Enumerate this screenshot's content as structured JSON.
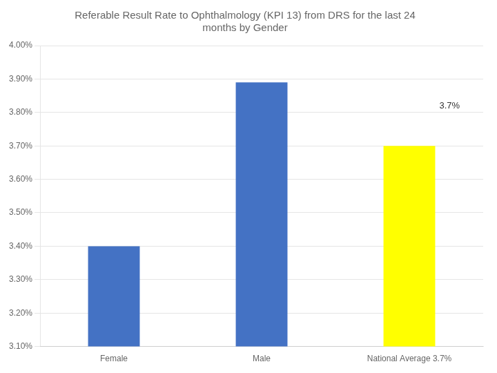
{
  "chart_data": {
    "type": "bar",
    "title": "Referable Result Rate to Ophthalmology (KPI 13) from DRS for the last 24\nmonths by Gender",
    "categories": [
      "Female",
      "Male",
      "National Average 3.7%"
    ],
    "values": [
      0.034,
      0.0389,
      0.037
    ],
    "colors": [
      "#4472C4",
      "#4472C4",
      "#FFFF00"
    ],
    "ylim": [
      0.031,
      0.04
    ],
    "yticks": [
      {
        "value": 0.031,
        "label": "3.10%"
      },
      {
        "value": 0.032,
        "label": "3.20%"
      },
      {
        "value": 0.033,
        "label": "3.30%"
      },
      {
        "value": 0.034,
        "label": "3.40%"
      },
      {
        "value": 0.035,
        "label": "3.50%"
      },
      {
        "value": 0.036,
        "label": "3.60%"
      },
      {
        "value": 0.037,
        "label": "3.70%"
      },
      {
        "value": 0.038,
        "label": "3.80%"
      },
      {
        "value": 0.039,
        "label": "3.90%"
      },
      {
        "value": 0.04,
        "label": "4.00%"
      }
    ],
    "grid": true,
    "annotations": [
      {
        "text": "3.7%",
        "x": "National Average 3.7%",
        "y": 0.0382
      }
    ]
  }
}
